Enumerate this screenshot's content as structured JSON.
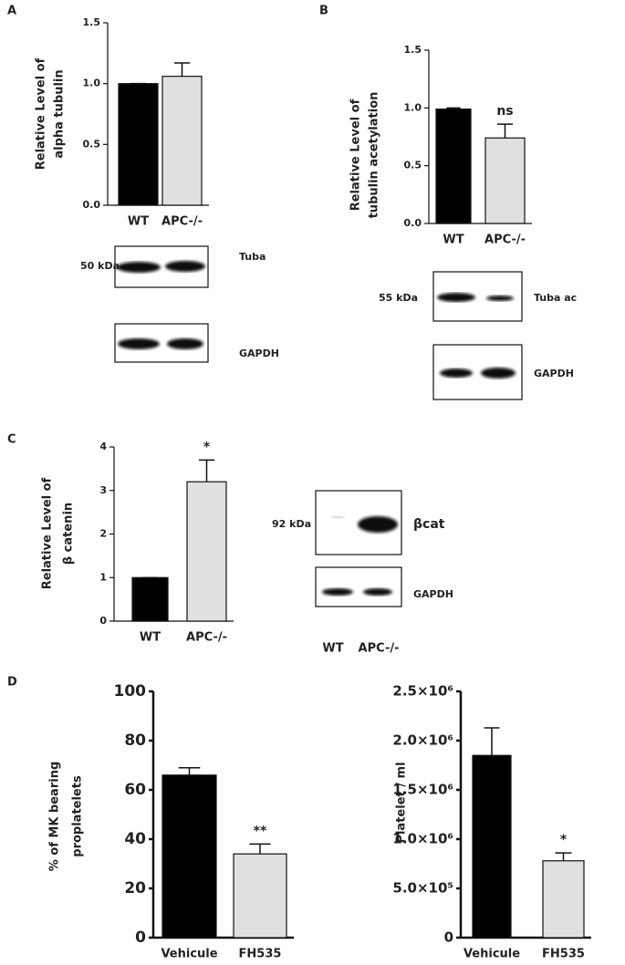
{
  "panels": [
    "A",
    "B",
    "C",
    "D"
  ],
  "blots": [
    {
      "kda": "50 kDa",
      "target": "Tuba",
      "control": "GAPDH"
    },
    {
      "kda": "55 kDa",
      "target": "Tuba ac",
      "control": "GAPDH"
    },
    {
      "kda": "92 kDa",
      "target": "βcat",
      "control": "GAPDH",
      "lanes": [
        "WT",
        "APC-/-"
      ]
    }
  ],
  "chart_data": [
    {
      "type": "bar",
      "ylabel": [
        "Relative Level of",
        "alpha tubulin"
      ],
      "categories": [
        "WT",
        "APC-/-"
      ],
      "values": [
        1.0,
        1.06
      ],
      "errors": [
        0,
        0.11
      ],
      "colors": [
        "#000000",
        "#e0e0e0"
      ],
      "ylim": [
        0,
        1.5
      ],
      "yticks": [
        {
          "value": 0,
          "label": "0.0"
        },
        0.5,
        {
          "value": 1,
          "label": "1.0"
        },
        1.5
      ]
    },
    {
      "type": "bar",
      "ylabel": [
        "Relative Level of",
        "tubulin acetylation"
      ],
      "categories": [
        "WT",
        "APC-/-"
      ],
      "values": [
        0.99,
        0.74
      ],
      "errors": [
        0.01,
        0.12
      ],
      "colors": [
        "#000000",
        "#e0e0e0"
      ],
      "ylim": [
        0,
        1.5
      ],
      "yticks": [
        {
          "value": 0,
          "label": "0.0"
        },
        0.5,
        {
          "value": 1,
          "label": "1.0"
        },
        1.5
      ],
      "annotations": [
        {
          "text": "ns",
          "category": "APC-/-"
        }
      ]
    },
    {
      "type": "bar",
      "ylabel": [
        "Relative Level of",
        "β catenin"
      ],
      "categories": [
        "WT",
        "APC-/-"
      ],
      "values": [
        1.0,
        3.2
      ],
      "errors": [
        0,
        0.5
      ],
      "colors": [
        "#000000",
        "#e0e0e0"
      ],
      "ylim": [
        0,
        4
      ],
      "yticks": [
        0,
        1,
        2,
        3,
        4
      ],
      "annotations": [
        {
          "text": "*",
          "category": "APC-/-"
        }
      ]
    },
    {
      "type": "bar",
      "ylabel": [
        "% of MK bearing",
        "proplatelets"
      ],
      "categories": [
        "Vehicule",
        "FH535"
      ],
      "values": [
        66,
        34
      ],
      "errors": [
        3,
        4
      ],
      "colors": [
        "#000000",
        "#e0e0e0"
      ],
      "ylim": [
        0,
        100
      ],
      "yticks": [
        0,
        20,
        40,
        60,
        80,
        100
      ],
      "annotations": [
        {
          "text": "**",
          "category": "FH535"
        }
      ]
    },
    {
      "type": "bar",
      "ylabel": [
        "Platelet / ml"
      ],
      "categories": [
        "Vehicule",
        "FH535"
      ],
      "values": [
        1850000,
        780000
      ],
      "errors": [
        280000,
        80000
      ],
      "colors": [
        "#000000",
        "#e0e0e0"
      ],
      "ylim": [
        0,
        2500000
      ],
      "yticks": [
        0,
        {
          "value": 500000,
          "label": "5.0×10⁵"
        },
        {
          "value": 1000000,
          "label": "1.0×10⁶"
        },
        {
          "value": 1500000,
          "label": "1.5×10⁶"
        },
        {
          "value": 2000000,
          "label": "2.0×10⁶"
        },
        {
          "value": 2500000,
          "label": "2.5×10⁶"
        }
      ],
      "annotations": [
        {
          "text": "*",
          "category": "FH535"
        }
      ]
    }
  ]
}
